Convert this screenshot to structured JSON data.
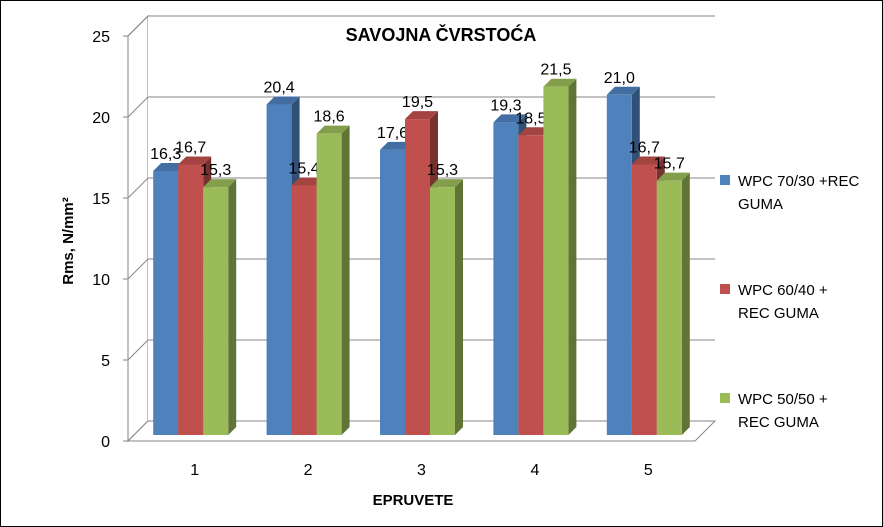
{
  "chart_data": {
    "type": "bar",
    "title": "SAVOJNA ČVRSTOĆA",
    "xlabel": "EPRUVETE",
    "ylabel": "Rms, N/mm²",
    "ylim": [
      0,
      25
    ],
    "yticks": [
      "0",
      "5",
      "10",
      "15",
      "20",
      "25"
    ],
    "grid": true,
    "legend_position": "right",
    "categories": [
      "1",
      "2",
      "3",
      "4",
      "5"
    ],
    "series": [
      {
        "name": "WPC 70/30 +REC GUMA",
        "name_lines": [
          "WPC 70/30 +REC",
          "GUMA"
        ],
        "color": "#4F81BD",
        "values": [
          16.3,
          20.4,
          17.6,
          19.3,
          21.0
        ],
        "labels": [
          "16,3",
          "20,4",
          "17,6",
          "19,3",
          "21,0"
        ]
      },
      {
        "name": "WPC 60/40 + REC GUMA",
        "name_lines": [
          "WPC 60/40 +",
          "REC GUMA"
        ],
        "color": "#C0504D",
        "values": [
          16.7,
          15.4,
          19.5,
          18.5,
          16.7
        ],
        "labels": [
          "16,7",
          "15,4",
          "19,5",
          "18,5",
          "16,7"
        ]
      },
      {
        "name": "WPC 50/50 + REC GUMA",
        "name_lines": [
          "WPC 50/50 +",
          "REC GUMA"
        ],
        "color": "#9BBB59",
        "values": [
          15.3,
          18.6,
          15.3,
          21.5,
          15.7
        ],
        "labels": [
          "15,3",
          "18,6",
          "15,3",
          "21,5",
          "15,7"
        ]
      }
    ]
  }
}
